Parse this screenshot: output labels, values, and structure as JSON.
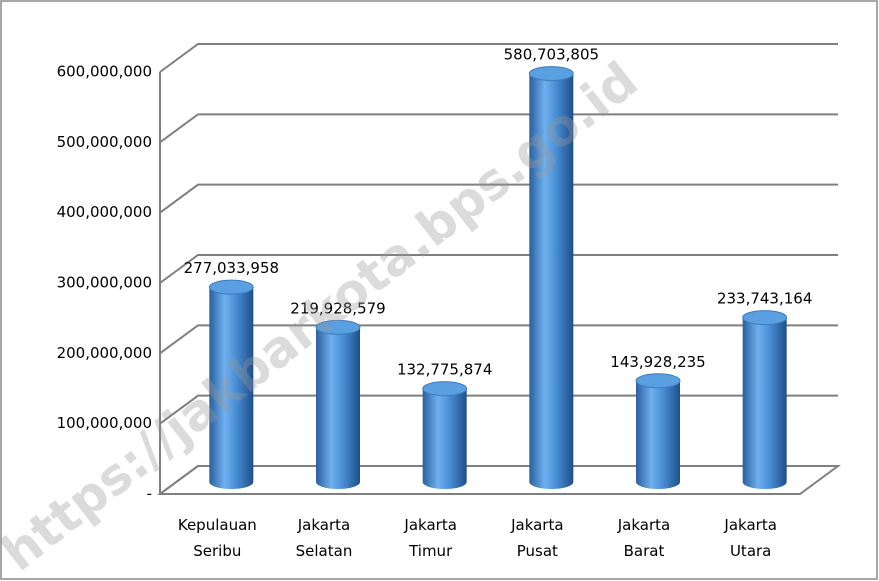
{
  "chart_data": {
    "type": "bar",
    "categories": [
      [
        "Kepulauan",
        "Seribu"
      ],
      [
        "Jakarta",
        "Selatan"
      ],
      [
        "Jakarta",
        "Timur"
      ],
      [
        "Jakarta",
        "Pusat"
      ],
      [
        "Jakarta",
        "Barat"
      ],
      [
        "Jakarta",
        "Utara"
      ]
    ],
    "values": [
      277033958,
      219928579,
      132775874,
      580703805,
      143928235,
      233743164
    ],
    "value_labels": [
      "277,033,958",
      "219,928,579",
      "132,775,874",
      "580,703,805",
      "143,928,235",
      "233,743,164"
    ],
    "color": "#4a8fd6",
    "ylim": [
      0,
      600000000
    ],
    "yticks": [
      {
        "value": 0,
        "label": "-"
      },
      {
        "value": 100000000,
        "label": "100,000,000"
      },
      {
        "value": 200000000,
        "label": "200,000,000"
      },
      {
        "value": 300000000,
        "label": "300,000,000"
      },
      {
        "value": 400000000,
        "label": "400,000,000"
      },
      {
        "value": 500000000,
        "label": "500,000,000"
      },
      {
        "value": 600000000,
        "label": "600,000,000"
      }
    ],
    "grid": true,
    "watermark": "https://jakbarkota.bps.go.id"
  }
}
